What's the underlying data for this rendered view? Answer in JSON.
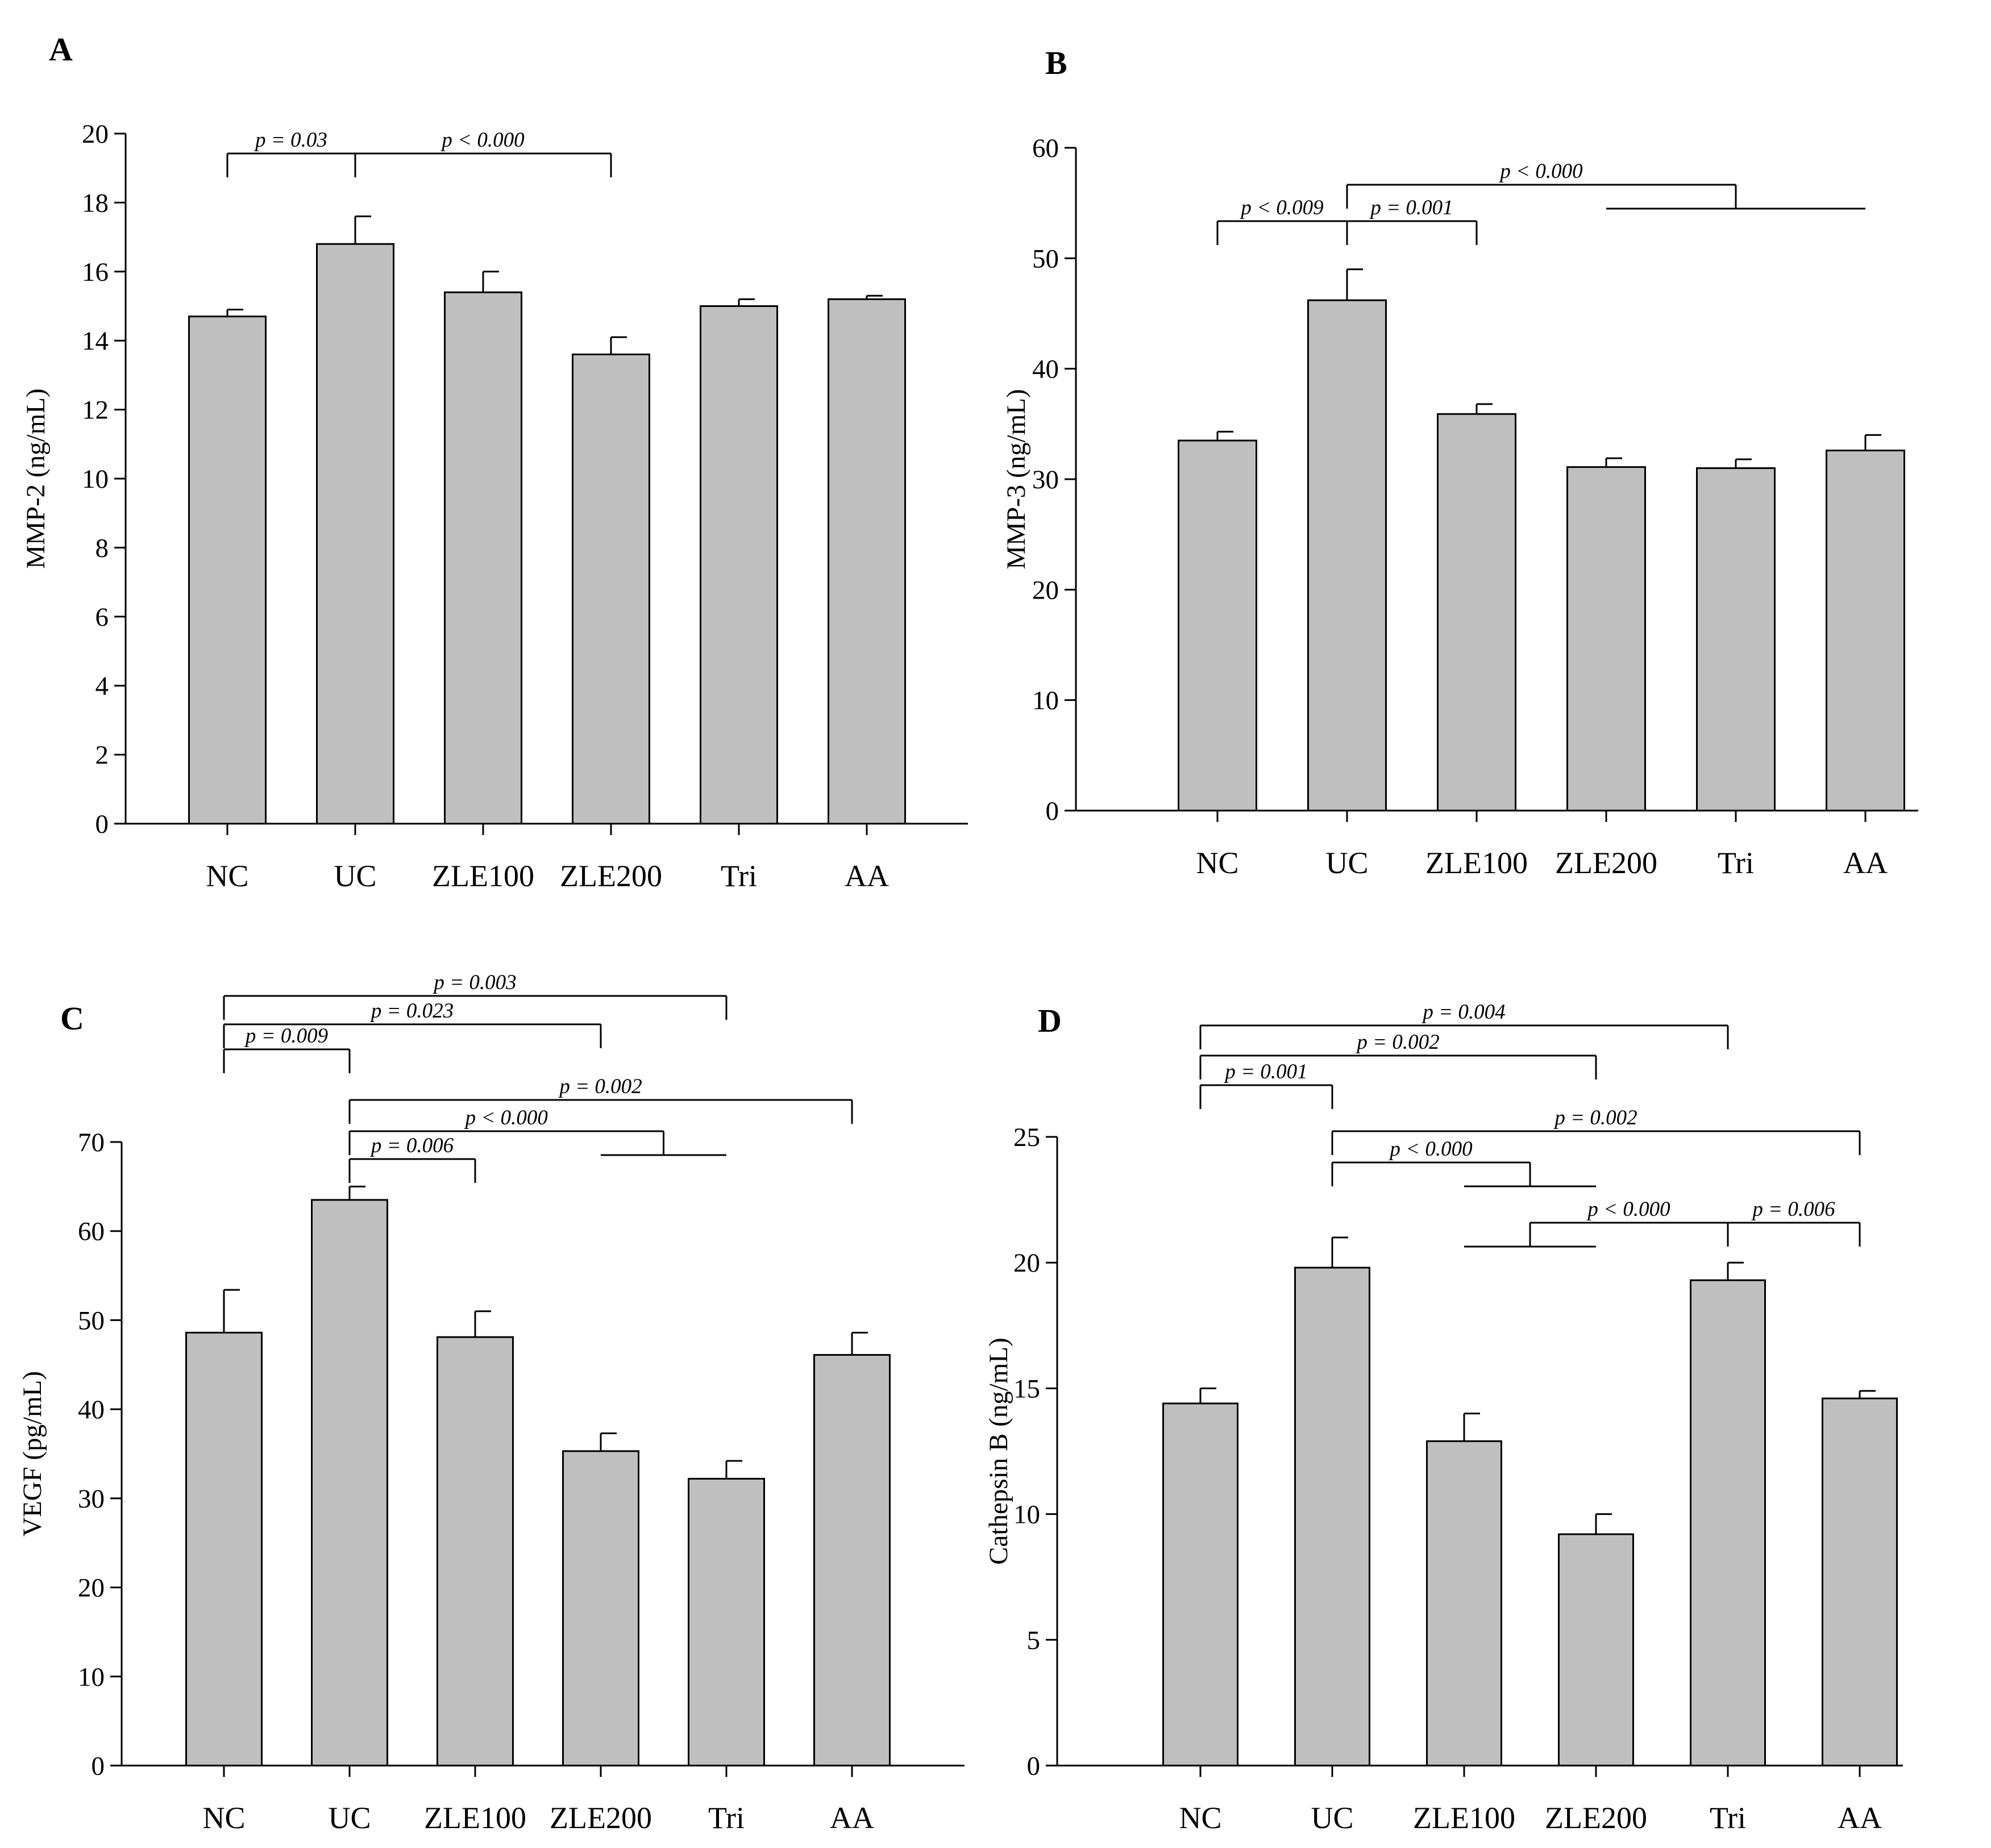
{
  "chart_data": [
    {
      "type": "bar",
      "panel": "A",
      "categories": [
        "NC",
        "UC",
        "ZLE100",
        "ZLE200",
        "Tri",
        "AA"
      ],
      "values": [
        14.7,
        16.8,
        15.4,
        13.6,
        15.0,
        15.2
      ],
      "errors": [
        0.2,
        0.8,
        0.6,
        0.5,
        0.2,
        0.1
      ],
      "ylabel": "MMP-2 (ng/mL)",
      "ylim": [
        0,
        20
      ],
      "yticks": [
        0,
        2,
        4,
        6,
        8,
        10,
        12,
        14,
        16,
        18,
        20
      ],
      "annotations": [
        {
          "label": "p = 0.03",
          "from": 0,
          "to": 1
        },
        {
          "label": "p < 0.000",
          "from": 1,
          "to": 3
        }
      ]
    },
    {
      "type": "bar",
      "panel": "B",
      "categories": [
        "NC",
        "UC",
        "ZLE100",
        "ZLE200",
        "Tri",
        "AA"
      ],
      "values": [
        33.5,
        46.2,
        35.9,
        31.1,
        31.0,
        32.6
      ],
      "errors": [
        0.8,
        2.8,
        0.9,
        0.8,
        0.8,
        1.4
      ],
      "ylabel": "MMP-3 (ng/mL)",
      "ylim": [
        0,
        60
      ],
      "yticks": [
        0,
        10,
        20,
        30,
        40,
        50,
        60
      ],
      "annotations": [
        {
          "label": "p < 0.009",
          "from": 0,
          "to": 1
        },
        {
          "label": "p = 0.001",
          "from": 1,
          "to": 2
        },
        {
          "label": "p < 0.000",
          "from": 1,
          "to": [
            3,
            5
          ]
        }
      ]
    },
    {
      "type": "bar",
      "panel": "C",
      "categories": [
        "NC",
        "UC",
        "ZLE100",
        "ZLE200",
        "Tri",
        "AA"
      ],
      "values": [
        48.6,
        63.5,
        48.1,
        35.3,
        32.2,
        46.1
      ],
      "errors": [
        4.8,
        1.5,
        2.9,
        2.0,
        2.0,
        2.5
      ],
      "ylabel": "VEGF (pg/mL)",
      "ylim": [
        0,
        70
      ],
      "yticks": [
        0,
        10,
        20,
        30,
        40,
        50,
        60,
        70
      ],
      "annotations": [
        {
          "label": "p = 0.003",
          "from": 0,
          "to": 4
        },
        {
          "label": "p = 0.023",
          "from": 0,
          "to": 3
        },
        {
          "label": "p = 0.009",
          "from": 0,
          "to": 1
        },
        {
          "label": "p = 0.002",
          "from": 1,
          "to": 5
        },
        {
          "label": "p < 0.000",
          "from": 1,
          "to": [
            3,
            4
          ]
        },
        {
          "label": "p = 0.006",
          "from": 1,
          "to": 2
        }
      ]
    },
    {
      "type": "bar",
      "panel": "D",
      "categories": [
        "NC",
        "UC",
        "ZLE100",
        "ZLE200",
        "Tri",
        "AA"
      ],
      "values": [
        14.4,
        19.8,
        12.9,
        9.2,
        19.3,
        14.6
      ],
      "errors": [
        0.6,
        1.2,
        1.1,
        0.8,
        0.7,
        0.3
      ],
      "ylabel": "Cathepsin B (ng/mL)",
      "ylim": [
        0,
        25
      ],
      "yticks": [
        0,
        5,
        10,
        15,
        20,
        25
      ],
      "annotations": [
        {
          "label": "p = 0.004",
          "from": 0,
          "to": 4
        },
        {
          "label": "p = 0.002",
          "from": 0,
          "to": 3
        },
        {
          "label": "p = 0.001",
          "from": 0,
          "to": 1
        },
        {
          "label": "p = 0.002",
          "from": 1,
          "to": 5
        },
        {
          "label": "p < 0.000",
          "from": 1,
          "to": [
            2,
            3
          ]
        },
        {
          "label": "p < 0.000",
          "from": [
            2,
            3
          ],
          "to": 4
        },
        {
          "label": "p = 0.006",
          "from": 4,
          "to": 5
        }
      ]
    }
  ]
}
